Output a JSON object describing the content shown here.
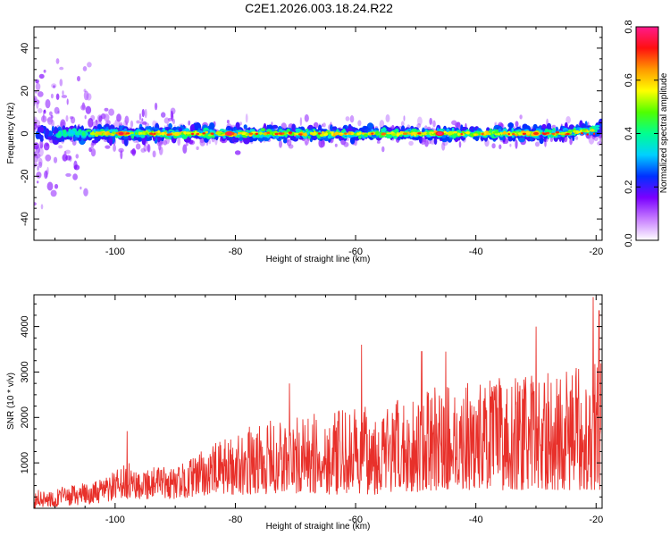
{
  "title": "C2E1.2026.003.18.24.R22",
  "chart_data": [
    {
      "type": "heatmap",
      "name": "spectrogram",
      "xlabel": "Height of straight line (km)",
      "ylabel": "Frequency (Hz)",
      "xlim": [
        -113.5,
        -19
      ],
      "ylim": [
        -50,
        50
      ],
      "xticks": [
        -100,
        -80,
        -60,
        -40,
        -20
      ],
      "xtick_labels": [
        "-100",
        "-80",
        "-60",
        "-40",
        "-20"
      ],
      "yticks": [
        -40,
        -20,
        0,
        20,
        40
      ],
      "ytick_labels": [
        "-40",
        "-20",
        "0",
        "20",
        "40"
      ],
      "band_center_hz": 0,
      "band_halfwidth_hz": 4,
      "hotspots": [
        {
          "x": -99,
          "amp": 0.75
        },
        {
          "x": -81,
          "amp": 0.78
        },
        {
          "x": -46,
          "amp": 0.8
        },
        {
          "x": -30,
          "amp": 0.7
        }
      ],
      "colorbar": {
        "label": "Normalized spectral amplitude",
        "range": [
          0,
          0.8
        ],
        "ticks": [
          0.0,
          0.2,
          0.4,
          0.6,
          0.8
        ],
        "tick_labels": [
          "0.0",
          "0.2",
          "0.4",
          "0.6",
          "0.8"
        ],
        "colors": [
          "#ffffff",
          "#c77dff",
          "#7a00ff",
          "#0030ff",
          "#00d0ff",
          "#00ff90",
          "#50ff00",
          "#ffff00",
          "#ff9900",
          "#ff1010",
          "#ff1a8c"
        ]
      }
    },
    {
      "type": "line",
      "name": "snr",
      "xlabel": "Height of straight line (km)",
      "ylabel": "SNR (10 * v/v)",
      "xlim": [
        -113.5,
        -19
      ],
      "ylim": [
        0,
        4700
      ],
      "xticks": [
        -100,
        -80,
        -60,
        -40,
        -20
      ],
      "xtick_labels": [
        "-100",
        "-80",
        "-60",
        "-40",
        "-20"
      ],
      "yticks": [
        1000,
        2000,
        3000,
        4000
      ],
      "ytick_labels": [
        "1000",
        "2000",
        "3000",
        "4000"
      ],
      "line_color": "#e8302a",
      "baseline_envelope": [
        {
          "x": -113,
          "low": 0,
          "high": 400
        },
        {
          "x": -103,
          "low": 100,
          "high": 600
        },
        {
          "x": -98,
          "low": 200,
          "high": 1000
        },
        {
          "x": -90,
          "low": 200,
          "high": 900
        },
        {
          "x": -84,
          "low": 300,
          "high": 1400
        },
        {
          "x": -76,
          "low": 300,
          "high": 1900
        },
        {
          "x": -66,
          "low": 300,
          "high": 2100
        },
        {
          "x": -55,
          "low": 300,
          "high": 2300
        },
        {
          "x": -46,
          "low": 400,
          "high": 2700
        },
        {
          "x": -36,
          "low": 400,
          "high": 2900
        },
        {
          "x": -26,
          "low": 400,
          "high": 3000
        },
        {
          "x": -20,
          "low": 400,
          "high": 3300
        }
      ],
      "peaks": [
        {
          "x": -98,
          "y": 1700
        },
        {
          "x": -71,
          "y": 2750
        },
        {
          "x": -59,
          "y": 3600
        },
        {
          "x": -49,
          "y": 3450
        },
        {
          "x": -45,
          "y": 3450
        },
        {
          "x": -30,
          "y": 4000
        },
        {
          "x": -20.5,
          "y": 4650
        },
        {
          "x": -19.5,
          "y": 4350
        }
      ]
    }
  ]
}
